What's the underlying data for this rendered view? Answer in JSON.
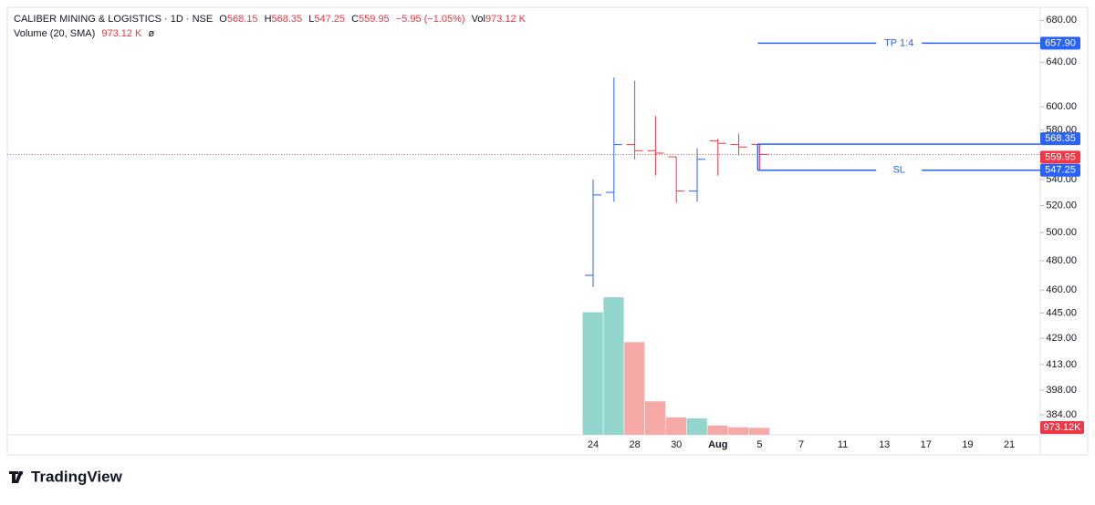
{
  "chart_data": {
    "type": "ohlc",
    "title": "CALIBER MINING & LOGISTICS · 1D · NSE",
    "header": {
      "open_label": "O",
      "high_label": "H",
      "low_label": "L",
      "close_label": "C",
      "change_label": "−5.95 (−1.05%)",
      "volume_label": "Vol",
      "volume_value_label": "973.12 K"
    },
    "volume_legend": {
      "title": "Volume (20, SMA)",
      "value_label": "973.12 K",
      "icon": "ø"
    },
    "categories": [
      "24",
      null,
      "28",
      null,
      "30",
      null,
      "Aug",
      null,
      "5"
    ],
    "future_labels": [
      "7",
      "11",
      "13",
      "17",
      "19",
      "21"
    ],
    "ohlc": [
      {
        "open": 470,
        "high": 540,
        "low": 462,
        "close": 528
      },
      {
        "open": 530,
        "high": 626,
        "low": 523,
        "close": 568
      },
      {
        "open": 568,
        "high": 623,
        "low": 556,
        "close": 563
      },
      {
        "open": 563,
        "high": 592,
        "low": 543,
        "close": 561
      },
      {
        "open": 558,
        "high": 558,
        "low": 522,
        "close": 531
      },
      {
        "open": 531,
        "high": 565,
        "low": 523,
        "close": 556
      },
      {
        "open": 571,
        "high": 573,
        "low": 543,
        "close": 569
      },
      {
        "open": 568,
        "high": 577,
        "low": 559,
        "close": 566
      },
      {
        "open": 568.15,
        "high": 568.35,
        "low": 547.25,
        "close": 559.95
      }
    ],
    "volume": [
      17200000,
      19300000,
      13000000,
      4700000,
      2450000,
      2300000,
      1300000,
      1050000,
      973120
    ],
    "volume_value_label": "973.12K",
    "volume_ylim": [
      0,
      60000000
    ],
    "up_color": "#2962ff",
    "down_color": "#f23645",
    "volume_up_color": "#92d5cc",
    "volume_down_color": "#f7a9a7",
    "log_scale": true,
    "ylim": [
      373,
      693
    ],
    "yticks": [
      {
        "value": 680,
        "label": "680.00"
      },
      {
        "value": 640,
        "label": "640.00"
      },
      {
        "value": 600,
        "label": "600.00"
      },
      {
        "value": 580,
        "label": "580.00"
      },
      {
        "value": 540,
        "label": "540.00"
      },
      {
        "value": 520,
        "label": "520.00"
      },
      {
        "value": 500,
        "label": "500.00"
      },
      {
        "value": 480,
        "label": "480.00"
      },
      {
        "value": 460,
        "label": "460.00"
      },
      {
        "value": 445,
        "label": "445.00"
      },
      {
        "value": 429,
        "label": "429.00"
      },
      {
        "value": 413,
        "label": "413.00"
      },
      {
        "value": 398,
        "label": "398.00"
      },
      {
        "value": 384,
        "label": "384.00"
      }
    ],
    "levels": [
      {
        "name": "TP 1:4",
        "value": 657.9,
        "label": "657.90"
      },
      {
        "value": 568.35,
        "label": "568.35"
      },
      {
        "name": "SL",
        "value": 547.25,
        "label": "547.25"
      }
    ],
    "level_color": "#2962ff",
    "brand": "TradingView"
  }
}
